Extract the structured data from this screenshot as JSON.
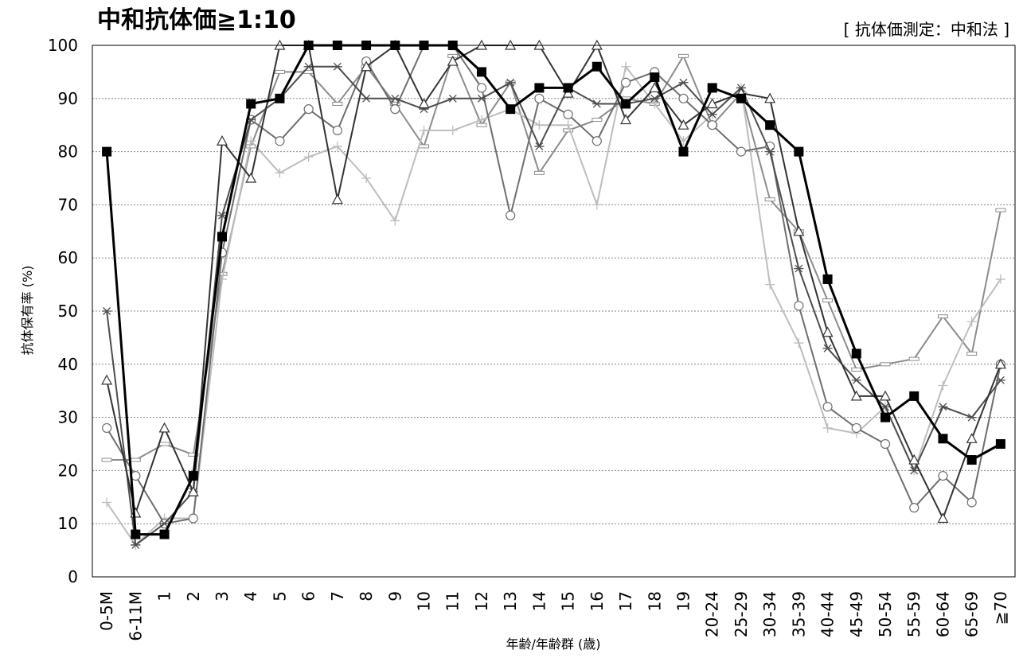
{
  "chart_data": {
    "type": "line",
    "title": "中和抗体価≧1:10",
    "note": "[ 抗体価測定：中和法 ]",
    "xlabel": "年齢/年齢群 (歳)",
    "ylabel": "抗体保有率 (%)",
    "ylim": [
      0,
      100
    ],
    "yticks": [
      0,
      10,
      20,
      30,
      40,
      50,
      60,
      70,
      80,
      90,
      100
    ],
    "grid": "horizontal-dotted",
    "categories": [
      "0-5M",
      "6-11M",
      "1",
      "2",
      "3",
      "4",
      "5",
      "6",
      "7",
      "8",
      "9",
      "10",
      "11",
      "12",
      "13",
      "14",
      "15",
      "16",
      "17",
      "18",
      "19",
      "20-24",
      "25-29",
      "30-34",
      "35-39",
      "40-44",
      "45-49",
      "50-54",
      "55-59",
      "60-64",
      "65-69",
      "≧70"
    ],
    "series": [
      {
        "marker": "dash",
        "color": "#8c8c8c",
        "values": [
          22,
          22,
          25,
          23,
          57,
          81,
          95,
          95,
          89,
          96,
          89,
          81,
          98,
          85,
          93,
          76,
          84,
          86,
          90,
          89,
          98,
          85,
          91,
          71,
          65,
          52,
          39,
          40,
          41,
          49,
          42,
          69
        ]
      },
      {
        "marker": "plus",
        "color": "#bdbdbd",
        "values": [
          14,
          6,
          11,
          11,
          56,
          82,
          76,
          79,
          81,
          75,
          67,
          84,
          84,
          86,
          88,
          85,
          85,
          70,
          96,
          89,
          82,
          87,
          92,
          55,
          44,
          28,
          27,
          32,
          20,
          36,
          48,
          56
        ]
      },
      {
        "marker": "circle",
        "color": "#6e6e6e",
        "values": [
          28,
          19,
          10,
          11,
          61,
          86,
          82,
          88,
          84,
          97,
          88,
          100,
          100,
          92,
          68,
          90,
          87,
          82,
          93,
          95,
          90,
          85,
          80,
          81,
          51,
          32,
          28,
          25,
          13,
          19,
          14,
          40
        ]
      },
      {
        "marker": "asterisk",
        "color": "#4d4d4d",
        "values": [
          50,
          6,
          10,
          16,
          68,
          86,
          90,
          96,
          96,
          90,
          90,
          88,
          90,
          90,
          93,
          81,
          92,
          89,
          89,
          90,
          93,
          87,
          92,
          80,
          58,
          43,
          37,
          32,
          20,
          32,
          30,
          37
        ]
      },
      {
        "marker": "triangle",
        "color": "#333333",
        "values": [
          37,
          12,
          28,
          16,
          82,
          75,
          100,
          100,
          71,
          96,
          100,
          89,
          97,
          100,
          100,
          100,
          91,
          100,
          86,
          92,
          85,
          89,
          91,
          90,
          65,
          46,
          34,
          34,
          22,
          11,
          26,
          40
        ]
      },
      {
        "marker": "square",
        "color": "#000000",
        "bold": true,
        "values": [
          80,
          8,
          8,
          19,
          64,
          89,
          90,
          100,
          100,
          100,
          100,
          100,
          100,
          95,
          88,
          92,
          92,
          96,
          89,
          94,
          80,
          92,
          90,
          85,
          80,
          56,
          42,
          30,
          34,
          26,
          22,
          25
        ]
      }
    ]
  }
}
